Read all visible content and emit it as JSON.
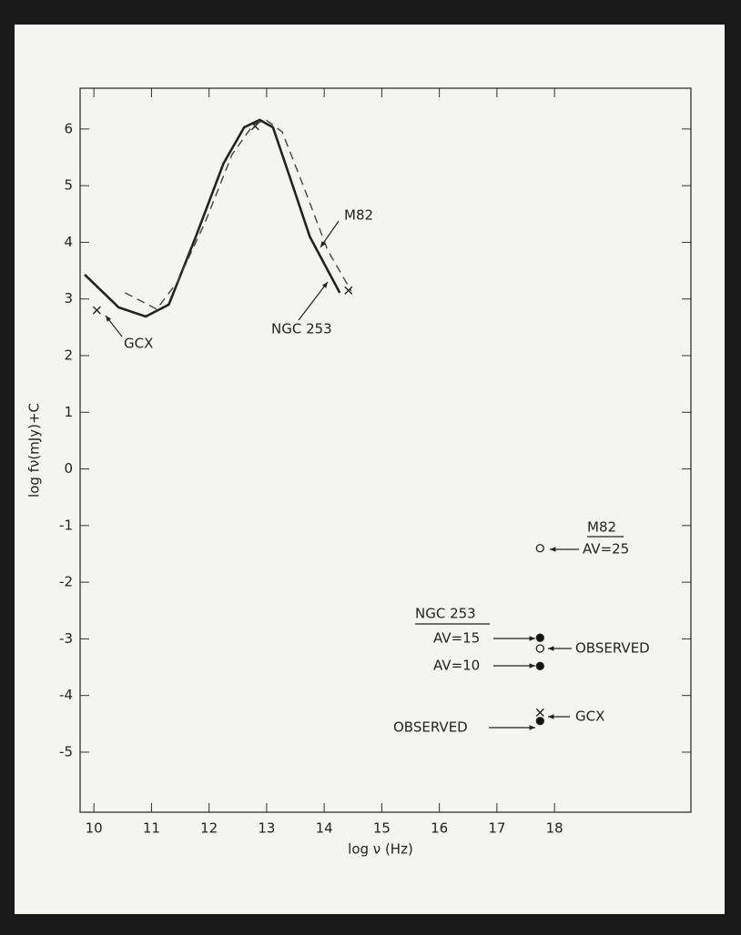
{
  "chart_data": {
    "type": "line",
    "x_label": "log ν (Hz)",
    "y_label": "log fν(mJy)+C",
    "xlim": [
      9.76,
      20.37
    ],
    "ylim": [
      -6.06,
      6.72
    ],
    "xticks": [
      10,
      11,
      12,
      13,
      14,
      15,
      16,
      17,
      18
    ],
    "yticks": [
      -5,
      -4,
      -3,
      -2,
      -1,
      0,
      1,
      2,
      3,
      4,
      5,
      6
    ],
    "series": [
      {
        "name": "NGC 253",
        "color": "#222222",
        "dash": false,
        "x": [
          9.84,
          10.43,
          10.9,
          11.3,
          11.77,
          12.25,
          12.61,
          12.88,
          13.11,
          13.43,
          13.75,
          14.27
        ],
        "values": [
          3.43,
          2.85,
          2.69,
          2.9,
          4.1,
          5.39,
          6.03,
          6.16,
          6.03,
          5.07,
          4.1,
          3.11
        ]
      },
      {
        "name": "M82",
        "color": "#444444",
        "dash": true,
        "x": [
          10.54,
          11.09,
          11.45,
          11.93,
          12.4,
          12.77,
          12.99,
          13.27,
          13.67,
          14.06,
          14.47
        ],
        "values": [
          3.11,
          2.82,
          3.3,
          4.35,
          5.55,
          6.08,
          6.16,
          5.95,
          4.91,
          3.86,
          3.14
        ]
      }
    ],
    "markers": [
      {
        "x": 10.05,
        "y": 2.8,
        "symbol": "cross"
      },
      {
        "x": 12.8,
        "y": 6.05,
        "symbol": "cross"
      },
      {
        "x": 14.42,
        "y": 3.15,
        "symbol": "cross"
      },
      {
        "x": 17.75,
        "y": -1.4,
        "symbol": "open"
      },
      {
        "x": 17.75,
        "y": -2.98,
        "symbol": "filled"
      },
      {
        "x": 17.75,
        "y": -3.17,
        "symbol": "open"
      },
      {
        "x": 17.75,
        "y": -3.48,
        "symbol": "filled"
      },
      {
        "x": 17.75,
        "y": -4.3,
        "symbol": "cross"
      },
      {
        "x": 17.75,
        "y": -4.45,
        "symbol": "filled"
      }
    ],
    "annotations": [
      "M82",
      "NGC 253",
      "GCX",
      "M82",
      "AV=25",
      "NGC 253",
      "AV=15",
      "OBSERVED",
      "AV=10",
      "GCX",
      "OBSERVED"
    ]
  }
}
